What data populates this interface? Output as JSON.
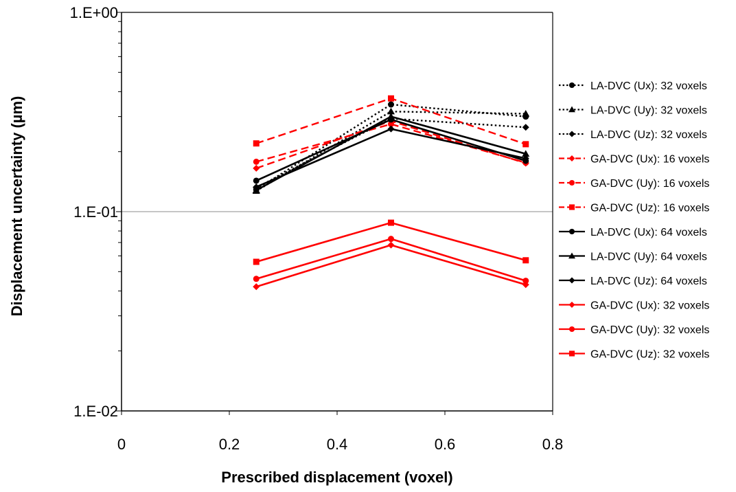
{
  "chart_data": {
    "type": "line",
    "xlabel": "Prescribed displacement (voxel)",
    "ylabel": "Displacement uncertainty (µm)",
    "xlim": [
      0,
      0.8
    ],
    "ylim": [
      0.01,
      1
    ],
    "yscale": "log",
    "x_ticks": [
      "0",
      "0.2",
      "0.4",
      "0.6",
      "0.8"
    ],
    "y_ticks": [
      "1.E-02",
      "1.E-01",
      "1.E+00"
    ],
    "grid": "major horizontal at 1.E-01",
    "legend_position": "right",
    "x": [
      0.25,
      0.5,
      0.75
    ],
    "series": [
      {
        "name": "LA-DVC (Ux): 32 voxels",
        "color": "#000000",
        "dash": "dotted",
        "marker": "circle",
        "values": [
          0.129,
          0.345,
          0.3
        ]
      },
      {
        "name": "LA-DVC (Uy): 32 voxels",
        "color": "#000000",
        "dash": "dotted",
        "marker": "triangle",
        "values": [
          0.127,
          0.318,
          0.31
        ]
      },
      {
        "name": "LA-DVC (Uz): 32 voxels",
        "color": "#000000",
        "dash": "dotted",
        "marker": "diamond",
        "values": [
          0.132,
          0.293,
          0.265
        ]
      },
      {
        "name": "GA-DVC (Ux): 16 voxels",
        "color": "#ff0000",
        "dash": "dashed",
        "marker": "diamond",
        "values": [
          0.165,
          0.285,
          0.175
        ]
      },
      {
        "name": "GA-DVC (Uy): 16 voxels",
        "color": "#ff0000",
        "dash": "dashed",
        "marker": "circle",
        "values": [
          0.178,
          0.275,
          0.176
        ]
      },
      {
        "name": "GA-DVC (Uz): 16 voxels",
        "color": "#ff0000",
        "dash": "dashed",
        "marker": "square",
        "values": [
          0.22,
          0.37,
          0.218
        ]
      },
      {
        "name": "LA-DVC (Ux): 64 voxels",
        "color": "#000000",
        "dash": "solid",
        "marker": "circle",
        "values": [
          0.143,
          0.29,
          0.18
        ]
      },
      {
        "name": "LA-DVC (Uy): 64 voxels",
        "color": "#000000",
        "dash": "solid",
        "marker": "triangle",
        "values": [
          0.128,
          0.3,
          0.195
        ]
      },
      {
        "name": "LA-DVC (Uz): 64 voxels",
        "color": "#000000",
        "dash": "solid",
        "marker": "diamond",
        "values": [
          0.133,
          0.26,
          0.185
        ]
      },
      {
        "name": "GA-DVC (Ux): 32 voxels",
        "color": "#ff0000",
        "dash": "solid",
        "marker": "diamond",
        "values": [
          0.042,
          0.068,
          0.043
        ]
      },
      {
        "name": "GA-DVC (Uy): 32 voxels",
        "color": "#ff0000",
        "dash": "solid",
        "marker": "circle",
        "values": [
          0.046,
          0.073,
          0.045
        ]
      },
      {
        "name": "GA-DVC (Uz): 32 voxels",
        "color": "#ff0000",
        "dash": "solid",
        "marker": "square",
        "values": [
          0.056,
          0.088,
          0.057
        ]
      }
    ]
  }
}
